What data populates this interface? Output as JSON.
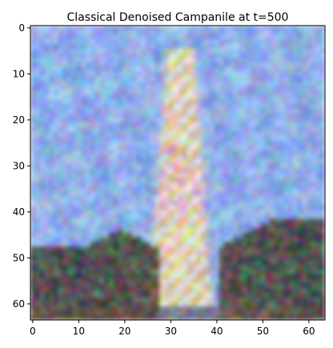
{
  "chart_data": {
    "type": "heatmap",
    "title": "Classical Denoised Campanile at t=500",
    "xlabel": "",
    "ylabel": "",
    "image_size": [
      64,
      64
    ],
    "xlim": [
      -0.5,
      63.5
    ],
    "ylim": [
      63.5,
      -0.5
    ],
    "x_ticks": [
      0,
      10,
      20,
      30,
      40,
      50,
      60
    ],
    "x_tick_labels": [
      "0",
      "10",
      "20",
      "30",
      "40",
      "50",
      "60"
    ],
    "y_ticks": [
      0,
      10,
      20,
      30,
      40,
      50,
      60
    ],
    "y_tick_labels": [
      "0",
      "10",
      "20",
      "30",
      "40",
      "50",
      "60"
    ],
    "grid": false,
    "content": "noisy blurry RGB image of a tall pale tower (campanile) centered near x=32 against a blue sky, dark green trees at lower left and lower right",
    "colors": {
      "sky": "#7f9fe6",
      "sky_light": "#9fc0f0",
      "tower": "#f4e0e6",
      "tower_warm": "#e8d27a",
      "trees_dark": "#2b3a22",
      "trees_red": "#6a2f35",
      "spine": "#000000"
    }
  }
}
